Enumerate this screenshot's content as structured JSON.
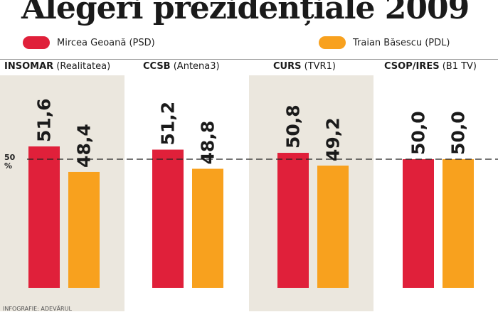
{
  "title": "Alegeri prezidențiale 2009",
  "colors": {
    "psd": "#e0203a",
    "pdl": "#f8a11e",
    "panel": "#ebe7de"
  },
  "chart_data": {
    "type": "bar",
    "title": "Alegeri prezidențiale 2009",
    "categories": [
      {
        "name": "INSOMAR",
        "source": "(Realitatea)"
      },
      {
        "name": "CCSB",
        "source": "(Antena3)"
      },
      {
        "name": "CURS",
        "source": "(TVR1)"
      },
      {
        "name": "CSOP/IRES",
        "source": "(B1 TV)"
      }
    ],
    "series": [
      {
        "name": "Mircea Geoană (PSD)",
        "values": [
          51.6,
          51.2,
          50.8,
          50.0
        ],
        "labels": [
          "51,6",
          "51,2",
          "50,8",
          "50,0"
        ]
      },
      {
        "name": "Traian Băsescu (PDL)",
        "values": [
          48.4,
          48.8,
          49.2,
          50.0
        ],
        "labels": [
          "48,4",
          "48,8",
          "49,2",
          "50,0"
        ]
      }
    ],
    "reference_line": {
      "value": 50,
      "label_value": "50",
      "label_unit": "%",
      "style": "dashed"
    },
    "legend_placement": "top"
  },
  "credit": "INFOGRAFIE: ADEVĂRUL"
}
